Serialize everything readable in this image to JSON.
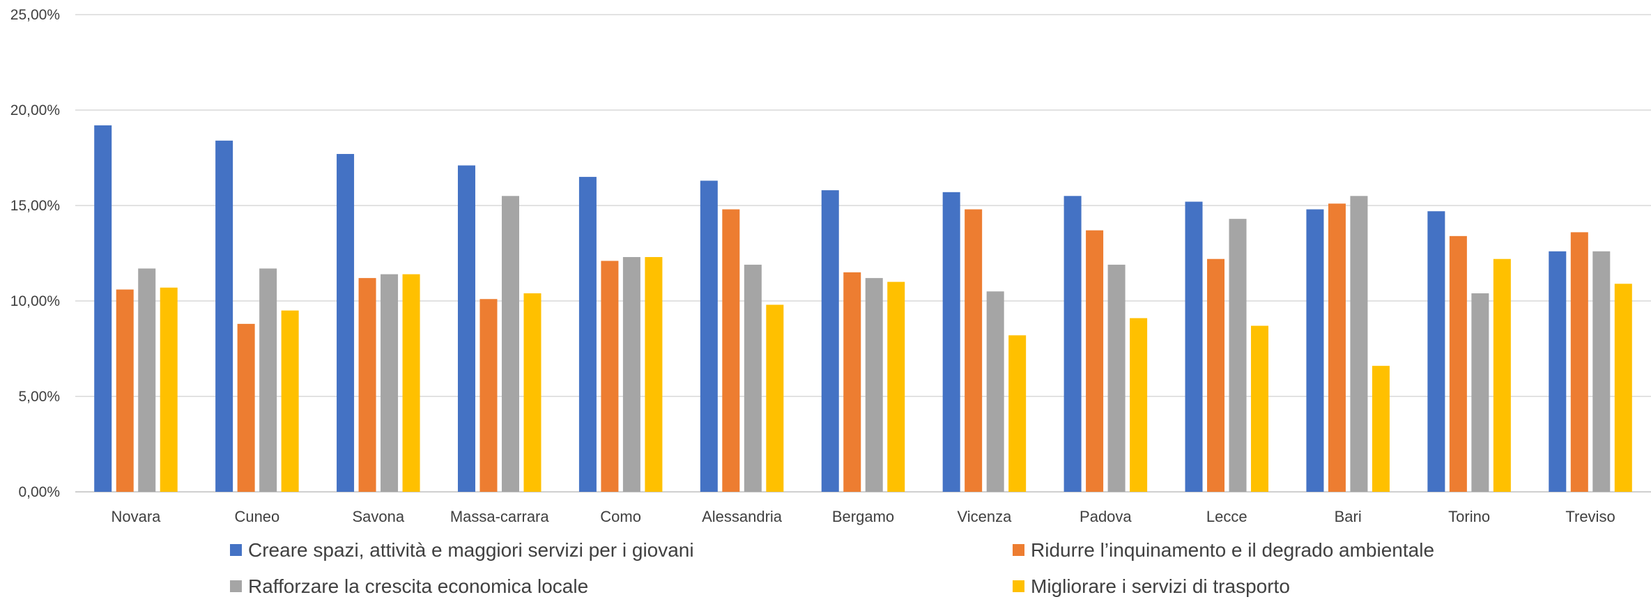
{
  "chart_data": {
    "type": "bar",
    "categories": [
      "Novara",
      "Cuneo",
      "Savona",
      "Massa-carrara",
      "Como",
      "Alessandria",
      "Bergamo",
      "Vicenza",
      "Padova",
      "Lecce",
      "Bari",
      "Torino",
      "Treviso"
    ],
    "series": [
      {
        "name": "Creare spazi, attività e maggiori servizi per i giovani",
        "color": "#4472C4",
        "values": [
          19.2,
          18.4,
          17.7,
          17.1,
          16.5,
          16.3,
          15.8,
          15.7,
          15.5,
          15.2,
          14.8,
          14.7,
          12.6
        ]
      },
      {
        "name": "Ridurre l’inquinamento e il degrado ambientale",
        "color": "#ED7D31",
        "values": [
          10.6,
          8.8,
          11.2,
          10.1,
          12.1,
          14.8,
          11.5,
          14.8,
          13.7,
          12.2,
          15.1,
          13.4,
          13.6
        ]
      },
      {
        "name": "Rafforzare la crescita economica locale",
        "color": "#A5A5A5",
        "values": [
          11.7,
          11.7,
          11.4,
          15.5,
          12.3,
          11.9,
          11.2,
          10.5,
          11.9,
          14.3,
          15.5,
          10.4,
          12.6
        ]
      },
      {
        "name": "Migliorare i servizi di trasporto",
        "color": "#FFC000",
        "values": [
          10.7,
          9.5,
          11.4,
          10.4,
          12.3,
          9.8,
          11.0,
          8.2,
          9.1,
          8.7,
          6.6,
          12.2,
          10.9
        ]
      }
    ],
    "y_ticks": [
      "0,00%",
      "5,00%",
      "10,00%",
      "15,00%",
      "20,00%",
      "25,00%"
    ],
    "ylim": [
      0,
      25
    ],
    "grid": true,
    "legend_position": "bottom",
    "title": "",
    "xlabel": "",
    "ylabel": ""
  }
}
